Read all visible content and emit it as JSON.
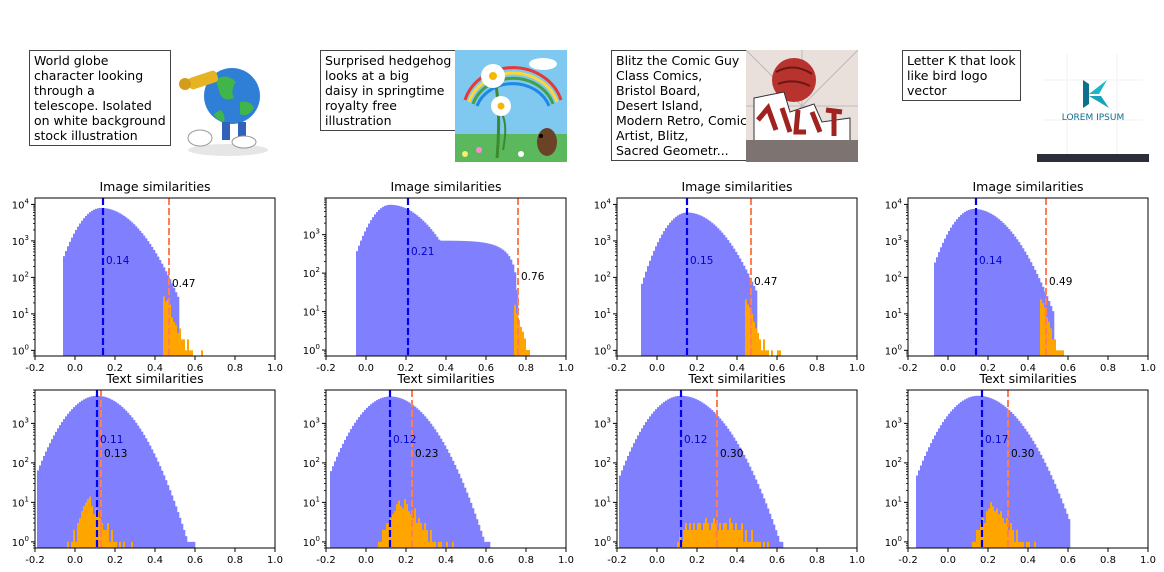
{
  "colors": {
    "hist_all": "#8080ff",
    "hist_top": "#ffa500",
    "median_line": "#0000ee",
    "top_line": "#ff7f50",
    "median_label": "#0000cc",
    "top_label": "#000000"
  },
  "panels": [
    {
      "caption": "World globe\ncharacter looking\nthrough a\ntelescope. Isolated\non white background\nstock illustration",
      "image_icon": "globe-character-telescope"
    },
    {
      "caption": "Surprised hedgehog\nlooks at a big\ndaisy in springtime\nroyalty free\nillustration",
      "image_icon": "hedgehog-daisy-rainbow"
    },
    {
      "caption": "Blitz the Comic Guy\nClass Comics,\nBristol Board,\nDesert Island,\nModern Retro, Comic\nArtist, Blitz,\nSacred Geometr...",
      "image_icon": "comic-crash-art"
    },
    {
      "caption": "Letter K that look\nlike bird logo\nvector",
      "image_icon": "letter-k-bird-logo",
      "image_text": "LOREM IPSUM"
    }
  ],
  "chart_data": [
    {
      "type": "bar",
      "title": "Image similarities",
      "scale": "log",
      "xlim": [
        -0.2,
        1.0
      ],
      "ylim": [
        0.7,
        15000
      ],
      "xticks": [
        "-0.2",
        "0.0",
        "0.2",
        "0.4",
        "0.6",
        "0.8",
        "1.0"
      ],
      "yticks": [
        "10^0",
        "10^1",
        "10^2",
        "10^3",
        "10^4"
      ],
      "median": {
        "x": 0.14,
        "label": "0.14",
        "label_y": 300
      },
      "top": {
        "x": 0.47,
        "label": "0.47",
        "label_y": 70
      },
      "all_bins": {
        "start": -0.06,
        "end": 0.52,
        "peak": 0.13,
        "peak_value": 8000,
        "sigma_left": 0.075,
        "sigma_right": 0.115,
        "tail": 0
      },
      "top_bins": {
        "start": 0.44,
        "end": 0.65,
        "values": [
          30,
          22,
          25,
          18,
          8,
          6,
          5,
          3,
          4,
          2,
          2,
          1,
          2,
          1,
          1,
          0,
          0,
          0,
          0,
          1,
          0
        ]
      }
    },
    {
      "type": "bar",
      "title": "Image similarities",
      "scale": "log",
      "xlim": [
        -0.2,
        1.0
      ],
      "ylim": [
        0.7,
        9000
      ],
      "xticks": [
        "-0.2",
        "0.0",
        "0.2",
        "0.4",
        "0.6",
        "0.8",
        "1.0"
      ],
      "yticks": [
        "10^0",
        "10^1",
        "10^2",
        "10^3"
      ],
      "median": {
        "x": 0.21,
        "label": "0.21",
        "label_y": 380
      },
      "top": {
        "x": 0.76,
        "label": "0.76",
        "label_y": 85
      },
      "all_bins": {
        "start": -0.05,
        "end": 0.76,
        "peak": 0.12,
        "peak_value": 6000,
        "sigma_left": 0.07,
        "sigma_right": 0.12,
        "tail": 700
      },
      "top_bins": {
        "start": 0.74,
        "end": 0.82,
        "values": [
          15,
          9,
          6,
          4,
          3,
          2,
          1,
          1
        ]
      }
    },
    {
      "type": "bar",
      "title": "Image similarities",
      "scale": "log",
      "xlim": [
        -0.2,
        1.0
      ],
      "ylim": [
        0.7,
        15000
      ],
      "xticks": [
        "-0.2",
        "0.0",
        "0.2",
        "0.4",
        "0.6",
        "0.8",
        "1.0"
      ],
      "yticks": [
        "10^0",
        "10^1",
        "10^2",
        "10^3",
        "10^4"
      ],
      "median": {
        "x": 0.15,
        "label": "0.15",
        "label_y": 300
      },
      "top": {
        "x": 0.47,
        "label": "0.47",
        "label_y": 80
      },
      "all_bins": {
        "start": -0.08,
        "end": 0.5,
        "peak": 0.15,
        "peak_value": 6000,
        "sigma_left": 0.075,
        "sigma_right": 0.11,
        "tail": 0
      },
      "top_bins": {
        "start": 0.44,
        "end": 0.62,
        "values": [
          25,
          18,
          15,
          10,
          6,
          4,
          3,
          2,
          1,
          2,
          1,
          1,
          0,
          1,
          0,
          0,
          1,
          1
        ]
      }
    },
    {
      "type": "bar",
      "title": "Image similarities",
      "scale": "log",
      "xlim": [
        -0.2,
        1.0
      ],
      "ylim": [
        0.7,
        15000
      ],
      "xticks": [
        "-0.2",
        "0.0",
        "0.2",
        "0.4",
        "0.6",
        "0.8",
        "1.0"
      ],
      "yticks": [
        "10^0",
        "10^1",
        "10^2",
        "10^3",
        "10^4"
      ],
      "median": {
        "x": 0.14,
        "label": "0.14",
        "label_y": 300
      },
      "top": {
        "x": 0.49,
        "label": "0.49",
        "label_y": 80
      },
      "all_bins": {
        "start": -0.07,
        "end": 0.53,
        "peak": 0.13,
        "peak_value": 7500,
        "sigma_left": 0.075,
        "sigma_right": 0.11,
        "tail": 0
      },
      "top_bins": {
        "start": 0.46,
        "end": 0.58,
        "values": [
          25,
          20,
          15,
          8,
          6,
          4,
          2,
          2,
          1,
          1,
          1,
          1
        ]
      }
    },
    {
      "type": "bar",
      "title": "Text similarities",
      "scale": "log",
      "xlim": [
        -0.2,
        1.0
      ],
      "ylim": [
        0.7,
        7000
      ],
      "xticks": [
        "-0.2",
        "0.0",
        "0.2",
        "0.4",
        "0.6",
        "0.8",
        "1.0"
      ],
      "yticks": [
        "10^0",
        "10^1",
        "10^2",
        "10^3"
      ],
      "median": {
        "x": 0.11,
        "label": "0.11",
        "label_y": 400
      },
      "top": {
        "x": 0.13,
        "label": "0.13",
        "label_y": 180
      },
      "all_bins": {
        "start": -0.19,
        "end": 0.6,
        "peak": 0.11,
        "peak_value": 5000,
        "sigma_left": 0.1,
        "sigma_right": 0.11,
        "tail": 0
      },
      "top_bins": {
        "start": -0.04,
        "end": 0.3,
        "values": [
          1,
          0,
          1,
          2,
          1,
          3,
          4,
          6,
          8,
          10,
          12,
          14,
          8,
          5,
          7,
          6,
          4,
          3,
          2,
          2,
          3,
          1,
          2,
          1,
          1,
          0,
          1,
          0,
          1,
          0,
          0,
          0,
          1,
          0
        ]
      }
    },
    {
      "type": "bar",
      "title": "Text similarities",
      "scale": "log",
      "xlim": [
        -0.2,
        1.0
      ],
      "ylim": [
        0.7,
        7000
      ],
      "xticks": [
        "-0.2",
        "0.0",
        "0.2",
        "0.4",
        "0.6",
        "0.8",
        "1.0"
      ],
      "yticks": [
        "10^0",
        "10^1",
        "10^2",
        "10^3"
      ],
      "median": {
        "x": 0.12,
        "label": "0.12",
        "label_y": 400
      },
      "top": {
        "x": 0.23,
        "label": "0.23",
        "label_y": 180
      },
      "all_bins": {
        "start": -0.18,
        "end": 0.62,
        "peak": 0.12,
        "peak_value": 4800,
        "sigma_left": 0.1,
        "sigma_right": 0.115,
        "tail": 0
      },
      "top_bins": {
        "start": 0.06,
        "end": 0.44,
        "values": [
          1,
          1,
          2,
          2,
          3,
          3,
          4,
          5,
          6,
          9,
          11,
          8,
          7,
          12,
          9,
          6,
          5,
          4,
          7,
          3,
          4,
          3,
          2,
          3,
          2,
          1,
          2,
          1,
          1,
          0,
          1,
          1,
          0,
          0,
          1,
          0,
          0,
          1
        ]
      }
    },
    {
      "type": "bar",
      "title": "Text similarities",
      "scale": "log",
      "xlim": [
        -0.2,
        1.0
      ],
      "ylim": [
        0.7,
        7000
      ],
      "xticks": [
        "-0.2",
        "0.0",
        "0.2",
        "0.4",
        "0.6",
        "0.8",
        "1.0"
      ],
      "yticks": [
        "10^0",
        "10^1",
        "10^2",
        "10^3"
      ],
      "median": {
        "x": 0.12,
        "label": "0.12",
        "label_y": 400
      },
      "top": {
        "x": 0.3,
        "label": "0.30",
        "label_y": 180
      },
      "all_bins": {
        "start": -0.19,
        "end": 0.63,
        "peak": 0.12,
        "peak_value": 5000,
        "sigma_left": 0.1,
        "sigma_right": 0.12,
        "tail": 0
      },
      "top_bins": {
        "start": 0.1,
        "end": 0.56,
        "values": [
          1,
          2,
          1,
          2,
          3,
          2,
          3,
          2,
          3,
          2,
          3,
          3,
          2,
          3,
          4,
          3,
          2,
          3,
          4,
          3,
          2,
          3,
          2,
          3,
          3,
          2,
          4,
          3,
          2,
          3,
          2,
          2,
          3,
          1,
          2,
          1,
          1,
          2,
          1,
          1,
          1,
          1,
          0,
          1,
          0,
          1
        ]
      }
    },
    {
      "type": "bar",
      "title": "Text similarities",
      "scale": "log",
      "xlim": [
        -0.2,
        1.0
      ],
      "ylim": [
        0.7,
        7000
      ],
      "xticks": [
        "-0.2",
        "0.0",
        "0.2",
        "0.4",
        "0.6",
        "0.8",
        "1.0"
      ],
      "yticks": [
        "10^0",
        "10^1",
        "10^2",
        "10^3"
      ],
      "median": {
        "x": 0.17,
        "label": "0.17",
        "label_y": 400
      },
      "top": {
        "x": 0.3,
        "label": "0.30",
        "label_y": 180
      },
      "all_bins": {
        "start": -0.16,
        "end": 0.61,
        "peak": 0.15,
        "peak_value": 5000,
        "sigma_left": 0.1,
        "sigma_right": 0.12,
        "tail": 0
      },
      "top_bins": {
        "start": 0.12,
        "end": 0.44,
        "values": [
          1,
          1,
          2,
          2,
          3,
          4,
          3,
          6,
          7,
          10,
          8,
          6,
          7,
          5,
          6,
          4,
          3,
          4,
          2,
          3,
          2,
          1,
          2,
          1,
          1,
          1,
          0,
          1,
          1,
          0,
          0,
          1
        ]
      }
    }
  ]
}
